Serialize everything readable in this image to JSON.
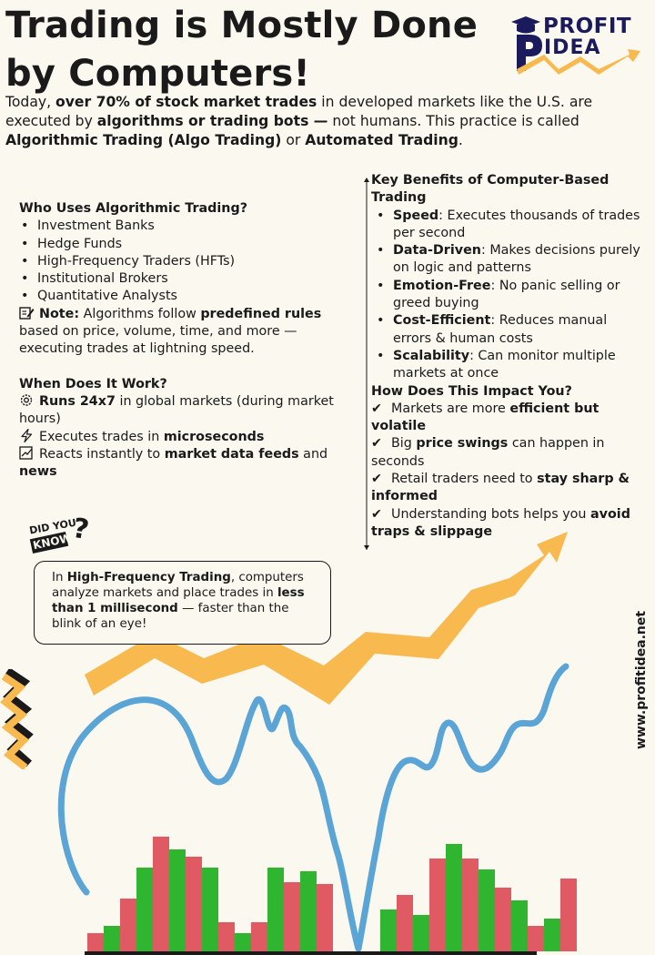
{
  "title": {
    "line1": "Trading is Mostly Done",
    "line2": "by Computers!"
  },
  "logo": {
    "line1": "PROFIT",
    "line2": "IDEA"
  },
  "intro": {
    "t1": "Today, ",
    "b1": "over 70% of stock market trades",
    "t2": " in developed markets like the U.S. are executed by ",
    "b2": "algorithms or trading bots —",
    "t3": " not humans. This practice is called ",
    "b3": "Algorithmic Trading (Algo Trading)",
    "t4": " or ",
    "b4": "Automated Trading",
    "t5": "."
  },
  "who": {
    "heading": "Who Uses Algorithmic Trading?",
    "items": [
      "Investment Banks",
      "Hedge Funds",
      "High-Frequency Traders (HFTs)",
      "Institutional Brokers",
      "Quantitative Analysts"
    ],
    "note_label": "Note:",
    "note_t1": " Algorithms follow ",
    "note_b1": "predefined rules",
    "note_t2": " based on price, volume, time, and more — executing trades at lightning speed."
  },
  "when": {
    "heading": "When Does It Work?",
    "item1_b": "Runs 24x7",
    "item1_t": " in global markets (during market hours)",
    "item2_t": "Executes trades in ",
    "item2_b": "microseconds",
    "item3_t": "Reacts instantly to ",
    "item3_b": "market data feeds",
    "item3_t2": " and ",
    "item3_b2": "news"
  },
  "benefits": {
    "heading": "Key Benefits of Computer-Based Trading",
    "items": [
      {
        "b": "Speed",
        "t": ": Executes thousands of trades per second"
      },
      {
        "b": "Data-Driven",
        "t": ": Makes decisions purely on logic and patterns"
      },
      {
        "b": "Emotion-Free",
        "t": ": No panic selling or greed buying"
      },
      {
        "b": "Cost-Efficient",
        "t": ": Reduces manual errors & human costs"
      },
      {
        "b": "Scalability",
        "t": ": Can monitor multiple markets at once"
      }
    ]
  },
  "impact": {
    "heading": "How Does This Impact You?",
    "check": "✔",
    "i1_t": "Markets are more ",
    "i1_b": "efficient but volatile",
    "i2_t": "Big ",
    "i2_b": "price swings",
    "i2_t2": " can happen in seconds",
    "i3_t": "Retail traders need to ",
    "i3_b": "stay sharp & informed",
    "i4_t": "Understanding bots helps you ",
    "i4_b": "avoid traps & slippage"
  },
  "didyouknow": {
    "line1": "DID YOU",
    "line2": "KNOW",
    "mark": "?"
  },
  "fact": {
    "t1": "In ",
    "b1": "High-Frequency Trading",
    "t2": ", computers analyze markets and place trades in ",
    "b2": "less than 1 millisecond",
    "t3": " — faster than the blink of an eye!"
  },
  "website": "www.profitidea.net",
  "colors": {
    "arrow": "#f8b94f",
    "line": "#5aa5d6",
    "bar_green": "#2fb52f",
    "bar_red": "#e05a64",
    "navy": "#1a1a5c"
  },
  "chart_data": {
    "type": "bar",
    "bars_group1": [
      {
        "color": "red",
        "value": 20
      },
      {
        "color": "green",
        "value": 28
      },
      {
        "color": "red",
        "value": 58
      },
      {
        "color": "green",
        "value": 92
      },
      {
        "color": "red",
        "value": 126
      },
      {
        "color": "green",
        "value": 112
      },
      {
        "color": "red",
        "value": 104
      },
      {
        "color": "green",
        "value": 92
      },
      {
        "color": "red",
        "value": 32
      },
      {
        "color": "green",
        "value": 20
      },
      {
        "color": "red",
        "value": 32
      },
      {
        "color": "green",
        "value": 92
      },
      {
        "color": "red",
        "value": 76
      },
      {
        "color": "green",
        "value": 88
      },
      {
        "color": "red",
        "value": 74
      }
    ],
    "bars_group2": [
      {
        "color": "green",
        "value": 46
      },
      {
        "color": "red",
        "value": 62
      },
      {
        "color": "green",
        "value": 40
      },
      {
        "color": "red",
        "value": 102
      },
      {
        "color": "green",
        "value": 118
      },
      {
        "color": "red",
        "value": 102
      },
      {
        "color": "green",
        "value": 90
      },
      {
        "color": "red",
        "value": 70
      },
      {
        "color": "green",
        "value": 56
      },
      {
        "color": "red",
        "value": 28
      },
      {
        "color": "green",
        "value": 36
      },
      {
        "color": "red",
        "value": 80
      }
    ]
  }
}
